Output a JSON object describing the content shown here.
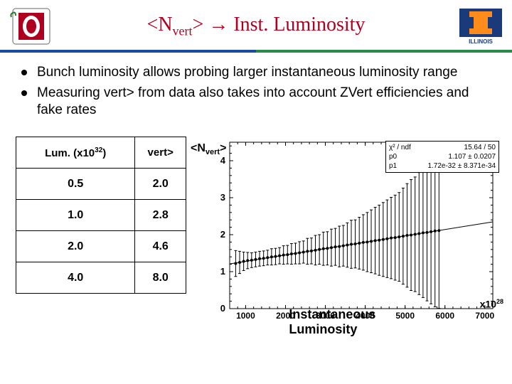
{
  "title_html": "&lt;N<sub>vert</sub>&gt; → Inst. Luminosity",
  "bullets": [
    "Bunch luminosity allows probing larger instantaneous luminosity range",
    "Measuring <N<sub>vert</sub>> from data also takes into account ZVert efficiencies and fake rates"
  ],
  "table": {
    "headers": [
      "Lum. (x10<sup>32</sup>)",
      "<N<sub>vert</sub>>"
    ],
    "rows": [
      [
        "0.5",
        "2.0"
      ],
      [
        "1.0",
        "2.8"
      ],
      [
        "2.0",
        "4.6"
      ],
      [
        "4.0",
        "8.0"
      ]
    ]
  },
  "chart": {
    "type": "scatter-with-errorbars-and-fit",
    "xlim": [
      600,
      7200
    ],
    "ylim": [
      0,
      4.5
    ],
    "xticks": [
      1000,
      2000,
      3000,
      4000,
      5000,
      6000,
      7000
    ],
    "yticks": [
      0,
      1,
      2,
      3,
      4
    ],
    "xlabel": "Instantaneous Luminosity",
    "ylabel_html": "&lt;N<sub>vert</sub>&gt;",
    "xunit_html": "x10<sup>28</sup>",
    "background_color": "#ffffff",
    "axis_color": "#000000",
    "marker_color": "#000000",
    "line_color": "#000000",
    "marker_size": 2,
    "errorbar_width": 1,
    "line_width": 1,
    "statbox": {
      "rows": [
        [
          "χ² / ndf",
          "15.64 / 50"
        ],
        [
          "p0",
          "1.107 ± 0.0207"
        ],
        [
          "p1",
          "1.72e-32 ± 8.371e-34"
        ]
      ]
    },
    "fit": {
      "intercept_at_x0": 1.107,
      "slope_per_x": 0.000172
    },
    "points": [
      {
        "x": 750,
        "y": 1.22,
        "eyl": 0.35,
        "eyh": 0.35
      },
      {
        "x": 850,
        "y": 1.25,
        "eyl": 0.3,
        "eyh": 0.3
      },
      {
        "x": 950,
        "y": 1.28,
        "eyl": 0.25,
        "eyh": 0.25
      },
      {
        "x": 1050,
        "y": 1.3,
        "eyl": 0.22,
        "eyh": 0.22
      },
      {
        "x": 1150,
        "y": 1.31,
        "eyl": 0.2,
        "eyh": 0.2
      },
      {
        "x": 1250,
        "y": 1.33,
        "eyl": 0.2,
        "eyh": 0.2
      },
      {
        "x": 1350,
        "y": 1.35,
        "eyl": 0.2,
        "eyh": 0.2
      },
      {
        "x": 1450,
        "y": 1.36,
        "eyl": 0.2,
        "eyh": 0.2
      },
      {
        "x": 1550,
        "y": 1.38,
        "eyl": 0.2,
        "eyh": 0.2
      },
      {
        "x": 1650,
        "y": 1.4,
        "eyl": 0.22,
        "eyh": 0.22
      },
      {
        "x": 1750,
        "y": 1.41,
        "eyl": 0.22,
        "eyh": 0.22
      },
      {
        "x": 1850,
        "y": 1.43,
        "eyl": 0.22,
        "eyh": 0.22
      },
      {
        "x": 1950,
        "y": 1.45,
        "eyl": 0.25,
        "eyh": 0.25
      },
      {
        "x": 2050,
        "y": 1.46,
        "eyl": 0.25,
        "eyh": 0.25
      },
      {
        "x": 2150,
        "y": 1.48,
        "eyl": 0.28,
        "eyh": 0.28
      },
      {
        "x": 2250,
        "y": 1.49,
        "eyl": 0.28,
        "eyh": 0.28
      },
      {
        "x": 2350,
        "y": 1.51,
        "eyl": 0.3,
        "eyh": 0.3
      },
      {
        "x": 2450,
        "y": 1.53,
        "eyl": 0.3,
        "eyh": 0.3
      },
      {
        "x": 2550,
        "y": 1.55,
        "eyl": 0.35,
        "eyh": 0.35
      },
      {
        "x": 2650,
        "y": 1.56,
        "eyl": 0.35,
        "eyh": 0.35
      },
      {
        "x": 2750,
        "y": 1.58,
        "eyl": 0.4,
        "eyh": 0.4
      },
      {
        "x": 2850,
        "y": 1.6,
        "eyl": 0.4,
        "eyh": 0.4
      },
      {
        "x": 2950,
        "y": 1.62,
        "eyl": 0.45,
        "eyh": 0.45
      },
      {
        "x": 3050,
        "y": 1.63,
        "eyl": 0.45,
        "eyh": 0.45
      },
      {
        "x": 3150,
        "y": 1.65,
        "eyl": 0.5,
        "eyh": 0.5
      },
      {
        "x": 3250,
        "y": 1.67,
        "eyl": 0.5,
        "eyh": 0.5
      },
      {
        "x": 3350,
        "y": 1.68,
        "eyl": 0.55,
        "eyh": 0.55
      },
      {
        "x": 3450,
        "y": 1.7,
        "eyl": 0.55,
        "eyh": 0.55
      },
      {
        "x": 3550,
        "y": 1.72,
        "eyl": 0.6,
        "eyh": 0.6
      },
      {
        "x": 3650,
        "y": 1.74,
        "eyl": 0.65,
        "eyh": 0.65
      },
      {
        "x": 3750,
        "y": 1.75,
        "eyl": 0.65,
        "eyh": 0.65
      },
      {
        "x": 3850,
        "y": 1.77,
        "eyl": 0.7,
        "eyh": 0.7
      },
      {
        "x": 3950,
        "y": 1.79,
        "eyl": 0.75,
        "eyh": 0.75
      },
      {
        "x": 4050,
        "y": 1.8,
        "eyl": 0.8,
        "eyh": 0.8
      },
      {
        "x": 4150,
        "y": 1.82,
        "eyl": 0.85,
        "eyh": 0.85
      },
      {
        "x": 4250,
        "y": 1.84,
        "eyl": 0.9,
        "eyh": 0.9
      },
      {
        "x": 4350,
        "y": 1.85,
        "eyl": 0.95,
        "eyh": 0.95
      },
      {
        "x": 4450,
        "y": 1.87,
        "eyl": 1.0,
        "eyh": 1.0
      },
      {
        "x": 4550,
        "y": 1.89,
        "eyl": 1.05,
        "eyh": 1.05
      },
      {
        "x": 4650,
        "y": 1.91,
        "eyl": 1.1,
        "eyh": 1.1
      },
      {
        "x": 4750,
        "y": 1.92,
        "eyl": 1.15,
        "eyh": 1.15
      },
      {
        "x": 4850,
        "y": 1.94,
        "eyl": 1.2,
        "eyh": 1.2
      },
      {
        "x": 4950,
        "y": 1.96,
        "eyl": 1.3,
        "eyh": 1.3
      },
      {
        "x": 5050,
        "y": 1.98,
        "eyl": 1.4,
        "eyh": 1.4
      },
      {
        "x": 5150,
        "y": 1.99,
        "eyl": 1.5,
        "eyh": 1.5
      },
      {
        "x": 5250,
        "y": 2.01,
        "eyl": 1.55,
        "eyh": 1.55
      },
      {
        "x": 5350,
        "y": 2.03,
        "eyl": 1.65,
        "eyh": 1.65
      },
      {
        "x": 5450,
        "y": 2.05,
        "eyl": 1.75,
        "eyh": 1.75
      },
      {
        "x": 5550,
        "y": 2.06,
        "eyl": 1.85,
        "eyh": 1.85
      },
      {
        "x": 5650,
        "y": 2.08,
        "eyl": 1.95,
        "eyh": 1.95
      },
      {
        "x": 5750,
        "y": 2.1,
        "eyl": 2.05,
        "eyh": 2.1
      },
      {
        "x": 5850,
        "y": 2.11,
        "eyl": 2.1,
        "eyh": 2.2
      }
    ]
  },
  "logos": {
    "left": {
      "bg": "#b00020",
      "fg": "#ffffff",
      "letter": "O"
    },
    "right": {
      "bg": "#1a3a7a",
      "fg": "#ff8c1a",
      "letter": "I"
    }
  }
}
